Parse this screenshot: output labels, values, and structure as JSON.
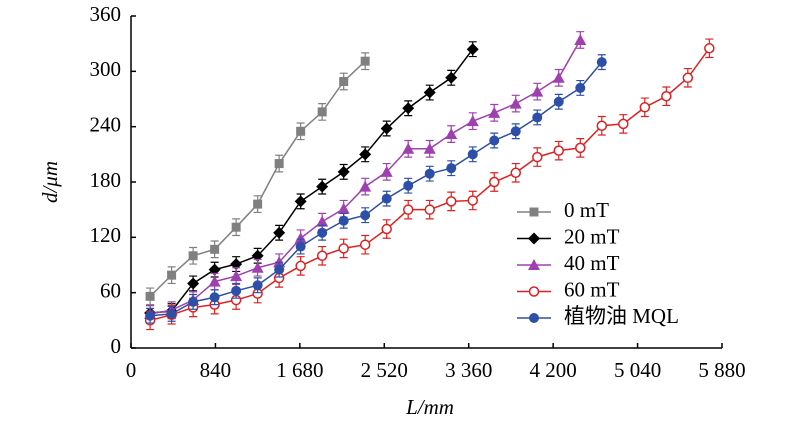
{
  "chart_data": {
    "type": "line",
    "xlabel": "L/mm",
    "ylabel": "d/μm",
    "xlim": [
      0,
      5880
    ],
    "ylim": [
      0,
      360
    ],
    "xticks": [
      0,
      840,
      {
        "value": 1680,
        "label": "1 680"
      },
      {
        "value": 2520,
        "label": "2 520"
      },
      {
        "value": 3360,
        "label": "3 360"
      },
      {
        "value": 4200,
        "label": "4 200"
      },
      {
        "value": 5040,
        "label": "5 040"
      },
      {
        "value": 5880,
        "label": "5 880"
      }
    ],
    "yticks": [
      0,
      60,
      120,
      180,
      240,
      300,
      360
    ],
    "legend": "right",
    "series": [
      {
        "name": "0 mT",
        "color": "#808080",
        "marker": "square",
        "error": 9,
        "x": [
          190,
          404,
          618,
          832,
          1046,
          1260,
          1474,
          1688,
          1902,
          2116,
          2330
        ],
        "values": [
          56,
          79,
          100,
          107,
          131,
          156,
          200,
          235,
          256,
          289,
          311
        ]
      },
      {
        "name": "20 mT",
        "color": "#000000",
        "marker": "diamond",
        "error": 8,
        "x": [
          190,
          404,
          618,
          832,
          1046,
          1260,
          1474,
          1688,
          1902,
          2116,
          2330,
          2544,
          2758,
          2972,
          3186,
          3400
        ],
        "values": [
          38,
          40,
          70,
          85,
          91,
          100,
          125,
          159,
          175,
          191,
          210,
          238,
          260,
          277,
          293,
          324
        ]
      },
      {
        "name": "40 mT",
        "color": "#a040b0",
        "marker": "triangle",
        "error": 9,
        "x": [
          190,
          404,
          618,
          832,
          1046,
          1260,
          1474,
          1688,
          1902,
          2116,
          2330,
          2544,
          2758,
          2972,
          3186,
          3400,
          3614,
          3828,
          4042,
          4256,
          4470
        ],
        "values": [
          37,
          41,
          52,
          72,
          78,
          87,
          93,
          119,
          137,
          151,
          175,
          191,
          216,
          216,
          232,
          246,
          255,
          265,
          278,
          293,
          334
        ]
      },
      {
        "name": "60 mT",
        "color": "#e02020",
        "marker": "open-circle",
        "error": 10,
        "x": [
          190,
          404,
          618,
          832,
          1046,
          1260,
          1474,
          1688,
          1902,
          2116,
          2330,
          2544,
          2758,
          2972,
          3186,
          3400,
          3614,
          3828,
          4042,
          4256,
          4470,
          4684,
          4898,
          5112,
          5326,
          5540,
          5754
        ],
        "values": [
          30,
          36,
          44,
          47,
          52,
          59,
          76,
          89,
          100,
          108,
          112,
          129,
          150,
          150,
          159,
          160,
          180,
          190,
          207,
          214,
          217,
          241,
          243,
          261,
          273,
          293,
          325
        ]
      },
      {
        "name": "植物油 MQL",
        "color": "#2e4fa8",
        "marker": "circle",
        "error": 8,
        "x": [
          190,
          404,
          618,
          832,
          1046,
          1260,
          1474,
          1688,
          1902,
          2116,
          2330,
          2544,
          2758,
          2972,
          3186,
          3400,
          3614,
          3828,
          4042,
          4256,
          4470,
          4684
        ],
        "values": [
          35,
          37,
          50,
          55,
          62,
          68,
          85,
          110,
          125,
          138,
          144,
          162,
          176,
          189,
          195,
          210,
          225,
          235,
          250,
          267,
          282,
          310
        ]
      }
    ]
  }
}
